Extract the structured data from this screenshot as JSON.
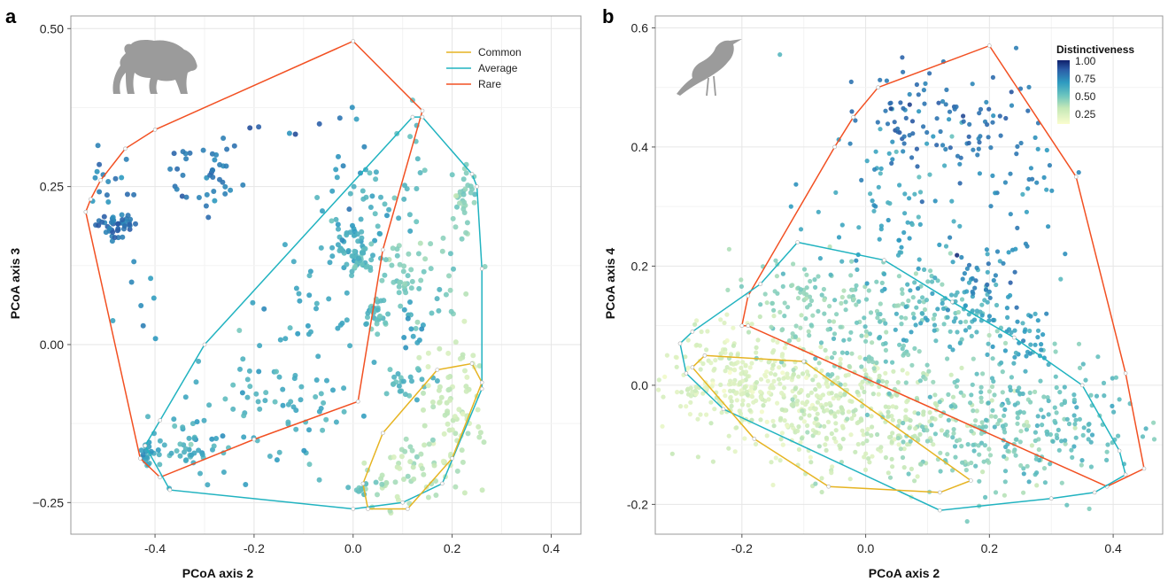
{
  "chart_data": [
    {
      "panel": "a",
      "type": "scatter",
      "xlabel": "PCoA axis 2",
      "ylabel": "PCoA axis 3",
      "xlim": [
        -0.57,
        0.46
      ],
      "ylim": [
        -0.3,
        0.52
      ],
      "xticks": [
        -0.4,
        -0.2,
        0.0,
        0.2,
        0.4
      ],
      "xtick_labels": [
        "-0.4",
        "-0.2",
        "0.0",
        "0.2",
        "0.4"
      ],
      "yticks": [
        -0.25,
        0.0,
        0.25,
        0.5
      ],
      "ytick_labels": [
        "−0.25",
        "0.00",
        "0.25",
        "0.50"
      ],
      "grid": true,
      "legend_position": "top-right",
      "legend": [
        {
          "label": "Common",
          "color": "#E6B422"
        },
        {
          "label": "Average",
          "color": "#21B3C0"
        },
        {
          "label": "Rare",
          "color": "#F25022"
        }
      ],
      "icon": "bear-icon",
      "hulls": [
        {
          "name": "Rare",
          "color": "#F25022",
          "points": [
            [
              -0.53,
              0.23
            ],
            [
              -0.51,
              0.26
            ],
            [
              -0.46,
              0.31
            ],
            [
              -0.4,
              0.34
            ],
            [
              0.0,
              0.48
            ],
            [
              0.14,
              0.37
            ],
            [
              0.06,
              0.15
            ],
            [
              0.01,
              -0.09
            ],
            [
              -0.2,
              -0.15
            ],
            [
              -0.39,
              -0.21
            ],
            [
              -0.43,
              -0.18
            ],
            [
              -0.54,
              0.21
            ]
          ]
        },
        {
          "name": "Average",
          "color": "#21B3C0",
          "points": [
            [
              -0.3,
              0.0
            ],
            [
              0.12,
              0.36
            ],
            [
              0.14,
              0.36
            ],
            [
              0.24,
              0.27
            ],
            [
              0.25,
              0.25
            ],
            [
              0.26,
              0.12
            ],
            [
              0.26,
              -0.07
            ],
            [
              0.18,
              -0.22
            ],
            [
              0.1,
              -0.25
            ],
            [
              0.0,
              -0.26
            ],
            [
              -0.37,
              -0.23
            ],
            [
              -0.42,
              -0.16
            ],
            [
              -0.39,
              -0.12
            ]
          ]
        },
        {
          "name": "Common",
          "color": "#E6B422",
          "points": [
            [
              0.17,
              -0.04
            ],
            [
              0.24,
              -0.03
            ],
            [
              0.26,
              -0.06
            ],
            [
              0.2,
              -0.18
            ],
            [
              0.11,
              -0.26
            ],
            [
              0.03,
              -0.26
            ],
            [
              0.02,
              -0.22
            ],
            [
              0.06,
              -0.14
            ]
          ]
        }
      ],
      "clusters": [
        {
          "x": -0.48,
          "y": 0.19,
          "sx": 0.02,
          "sy": 0.01,
          "n": 45,
          "v": 0.78
        },
        {
          "x": -0.49,
          "y": 0.24,
          "sx": 0.04,
          "sy": 0.03,
          "n": 15,
          "v": 0.72
        },
        {
          "x": -0.3,
          "y": 0.27,
          "sx": 0.04,
          "sy": 0.03,
          "n": 40,
          "v": 0.75
        },
        {
          "x": -0.42,
          "y": 0.08,
          "sx": 0.03,
          "sy": 0.05,
          "n": 8,
          "v": 0.7
        },
        {
          "x": -0.33,
          "y": -0.17,
          "sx": 0.04,
          "sy": 0.025,
          "n": 45,
          "v": 0.55
        },
        {
          "x": -0.41,
          "y": -0.17,
          "sx": 0.01,
          "sy": 0.01,
          "n": 20,
          "v": 0.62
        },
        {
          "x": -0.19,
          "y": -0.09,
          "sx": 0.07,
          "sy": 0.05,
          "n": 60,
          "v": 0.55
        },
        {
          "x": -0.08,
          "y": 0.07,
          "sx": 0.06,
          "sy": 0.06,
          "n": 30,
          "v": 0.6
        },
        {
          "x": -0.02,
          "y": 0.16,
          "sx": 0.03,
          "sy": 0.02,
          "n": 40,
          "v": 0.58
        },
        {
          "x": 0.02,
          "y": 0.14,
          "sx": 0.015,
          "sy": 0.01,
          "n": 30,
          "v": 0.5
        },
        {
          "x": 0.02,
          "y": 0.23,
          "sx": 0.04,
          "sy": 0.03,
          "n": 25,
          "v": 0.55
        },
        {
          "x": 0.04,
          "y": 0.05,
          "sx": 0.015,
          "sy": 0.015,
          "n": 30,
          "v": 0.48
        },
        {
          "x": 0.1,
          "y": 0.1,
          "sx": 0.02,
          "sy": 0.03,
          "n": 30,
          "v": 0.4
        },
        {
          "x": 0.12,
          "y": 0.28,
          "sx": 0.02,
          "sy": 0.05,
          "n": 15,
          "v": 0.5
        },
        {
          "x": 0.22,
          "y": 0.24,
          "sx": 0.015,
          "sy": 0.025,
          "n": 30,
          "v": 0.4
        },
        {
          "x": 0.17,
          "y": 0.12,
          "sx": 0.03,
          "sy": 0.05,
          "n": 20,
          "v": 0.42
        },
        {
          "x": 0.1,
          "y": -0.06,
          "sx": 0.03,
          "sy": 0.02,
          "n": 25,
          "v": 0.5
        },
        {
          "x": 0.12,
          "y": 0.02,
          "sx": 0.02,
          "sy": 0.02,
          "n": 12,
          "v": 0.6
        },
        {
          "x": 0.2,
          "y": -0.1,
          "sx": 0.03,
          "sy": 0.06,
          "n": 80,
          "v": 0.22
        },
        {
          "x": 0.1,
          "y": -0.2,
          "sx": 0.04,
          "sy": 0.03,
          "n": 50,
          "v": 0.28
        },
        {
          "x": 0.02,
          "y": -0.23,
          "sx": 0.01,
          "sy": 0.01,
          "n": 15,
          "v": 0.45
        },
        {
          "x": -0.05,
          "y": -0.12,
          "sx": 0.04,
          "sy": 0.03,
          "n": 15,
          "v": 0.55
        },
        {
          "x": -0.15,
          "y": 0.35,
          "sx": 0.05,
          "sy": 0.03,
          "n": 5,
          "v": 0.8
        },
        {
          "x": 0.0,
          "y": 0.3,
          "sx": 0.04,
          "sy": 0.05,
          "n": 10,
          "v": 0.7
        },
        {
          "x": 0.23,
          "y": 0.15,
          "sx": 0.03,
          "sy": 0.06,
          "n": 10,
          "v": 0.35
        }
      ]
    },
    {
      "panel": "b",
      "type": "scatter",
      "xlabel": "PCoA axis 2",
      "ylabel": "PCoA axis 4",
      "xlim": [
        -0.34,
        0.48
      ],
      "ylim": [
        -0.25,
        0.62
      ],
      "xticks": [
        -0.2,
        0.0,
        0.2,
        0.4
      ],
      "xtick_labels": [
        "-0.2",
        "0.0",
        "0.2",
        "0.4"
      ],
      "yticks": [
        -0.2,
        0.0,
        0.2,
        0.4,
        0.6
      ],
      "ytick_labels": [
        "-0.2",
        "0.0",
        "0.2",
        "0.4",
        "0.6"
      ],
      "grid": true,
      "legend_position": "top-right",
      "colorbar": {
        "title": "Distinctiveness",
        "ticks": [
          1.0,
          0.75,
          0.5,
          0.25
        ],
        "tick_labels": [
          "1.00",
          "0.75",
          "0.50",
          "0.25"
        ],
        "range": [
          0.1,
          1.0
        ]
      },
      "icon": "bird-icon",
      "hulls": [
        {
          "name": "Rare",
          "color": "#F25022",
          "points": [
            [
              -0.05,
              0.4
            ],
            [
              -0.02,
              0.45
            ],
            [
              0.02,
              0.5
            ],
            [
              0.2,
              0.57
            ],
            [
              0.34,
              0.35
            ],
            [
              0.42,
              0.02
            ],
            [
              0.45,
              -0.14
            ],
            [
              0.39,
              -0.17
            ],
            [
              -0.19,
              0.1
            ],
            [
              -0.2,
              0.1
            ],
            [
              -0.19,
              0.15
            ]
          ]
        },
        {
          "name": "Average",
          "color": "#21B3C0",
          "points": [
            [
              -0.11,
              0.24
            ],
            [
              0.03,
              0.21
            ],
            [
              0.14,
              0.14
            ],
            [
              0.24,
              0.08
            ],
            [
              0.35,
              0.0
            ],
            [
              0.41,
              -0.11
            ],
            [
              0.42,
              -0.15
            ],
            [
              0.37,
              -0.18
            ],
            [
              0.3,
              -0.19
            ],
            [
              0.12,
              -0.21
            ],
            [
              -0.23,
              -0.04
            ],
            [
              -0.29,
              0.02
            ],
            [
              -0.3,
              0.07
            ],
            [
              -0.28,
              0.09
            ],
            [
              -0.17,
              0.17
            ]
          ]
        },
        {
          "name": "Common",
          "color": "#E6B422",
          "points": [
            [
              -0.28,
              0.03
            ],
            [
              -0.26,
              0.05
            ],
            [
              -0.1,
              0.04
            ],
            [
              0.17,
              -0.16
            ],
            [
              0.12,
              -0.18
            ],
            [
              -0.06,
              -0.17
            ],
            [
              -0.18,
              -0.09
            ]
          ]
        }
      ],
      "clusters": [
        {
          "x": -0.2,
          "y": 0.0,
          "sx": 0.06,
          "sy": 0.04,
          "n": 260,
          "v": 0.15
        },
        {
          "x": -0.08,
          "y": -0.04,
          "sx": 0.07,
          "sy": 0.05,
          "n": 200,
          "v": 0.18
        },
        {
          "x": 0.05,
          "y": -0.06,
          "sx": 0.08,
          "sy": 0.05,
          "n": 160,
          "v": 0.25
        },
        {
          "x": 0.18,
          "y": -0.08,
          "sx": 0.08,
          "sy": 0.05,
          "n": 160,
          "v": 0.38
        },
        {
          "x": 0.3,
          "y": -0.05,
          "sx": 0.07,
          "sy": 0.05,
          "n": 130,
          "v": 0.48
        },
        {
          "x": 0.02,
          "y": 0.1,
          "sx": 0.08,
          "sy": 0.05,
          "n": 160,
          "v": 0.4
        },
        {
          "x": -0.12,
          "y": 0.14,
          "sx": 0.05,
          "sy": 0.04,
          "n": 70,
          "v": 0.35
        },
        {
          "x": 0.15,
          "y": 0.13,
          "sx": 0.05,
          "sy": 0.04,
          "n": 90,
          "v": 0.55
        },
        {
          "x": 0.25,
          "y": 0.08,
          "sx": 0.03,
          "sy": 0.03,
          "n": 40,
          "v": 0.62
        },
        {
          "x": 0.05,
          "y": 0.3,
          "sx": 0.08,
          "sy": 0.08,
          "n": 90,
          "v": 0.6
        },
        {
          "x": 0.14,
          "y": 0.43,
          "sx": 0.07,
          "sy": 0.05,
          "n": 70,
          "v": 0.78
        },
        {
          "x": 0.05,
          "y": 0.46,
          "sx": 0.04,
          "sy": 0.04,
          "n": 30,
          "v": 0.8
        },
        {
          "x": 0.25,
          "y": 0.33,
          "sx": 0.04,
          "sy": 0.06,
          "n": 30,
          "v": 0.7
        },
        {
          "x": 0.2,
          "y": 0.18,
          "sx": 0.03,
          "sy": 0.02,
          "n": 25,
          "v": 0.75
        }
      ]
    }
  ]
}
